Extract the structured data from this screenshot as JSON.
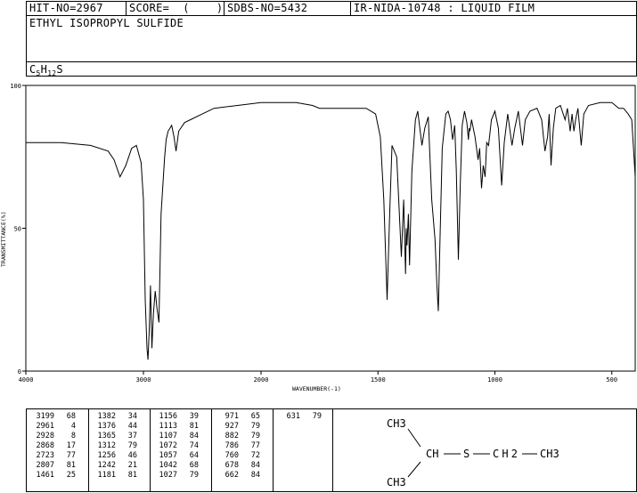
{
  "header": {
    "hit_no": "HIT-NO=2967",
    "score": "SCORE=  (    )",
    "sdbs_no": "SDBS-NO=5432",
    "ir_info": "IR-NIDA-10748 : LIQUID FILM"
  },
  "compound": {
    "name": "ETHYL ISOPROPYL SULFIDE",
    "formula_parts": [
      "C",
      "5",
      "H",
      "12",
      "S"
    ]
  },
  "structure": {
    "ch3_top": "CH3",
    "ch": "CH",
    "s": "S",
    "ch2": "CH2",
    "ch3_right": "CH3",
    "ch3_bottom": "CH3"
  },
  "peak_table": [
    [
      [
        "3199",
        "68"
      ],
      [
        "2961",
        "4"
      ],
      [
        "2928",
        "8"
      ],
      [
        "2868",
        "17"
      ],
      [
        "2723",
        "77"
      ],
      [
        "2807",
        "81"
      ],
      [
        "1461",
        "25"
      ]
    ],
    [
      [
        "1382",
        "34"
      ],
      [
        "1376",
        "44"
      ],
      [
        "1365",
        "37"
      ],
      [
        "1312",
        "79"
      ],
      [
        "1256",
        "46"
      ],
      [
        "1242",
        "21"
      ],
      [
        "1181",
        "81"
      ]
    ],
    [
      [
        "1156",
        "39"
      ],
      [
        "1113",
        "81"
      ],
      [
        "1107",
        "84"
      ],
      [
        "1072",
        "74"
      ],
      [
        "1057",
        "64"
      ],
      [
        "1042",
        "68"
      ],
      [
        "1027",
        "79"
      ]
    ],
    [
      [
        "971",
        "65"
      ],
      [
        "927",
        "79"
      ],
      [
        "882",
        "79"
      ],
      [
        "786",
        "77"
      ],
      [
        "760",
        "72"
      ],
      [
        "678",
        "84"
      ],
      [
        "662",
        "84"
      ]
    ],
    [
      [
        "631",
        "79"
      ]
    ]
  ],
  "chart_data": {
    "type": "line",
    "title": "",
    "xlabel": "WAVENUMBER(-1)",
    "ylabel": "TRANSMITTANCE(%)",
    "xlim": [
      4000,
      400
    ],
    "ylim": [
      0,
      100
    ],
    "x_ticks": [
      4000,
      3000,
      2000,
      1500,
      1000,
      500
    ],
    "y_ticks": [
      0,
      50,
      100
    ],
    "grid": false,
    "series": [
      {
        "x": [
          4000,
          3850,
          3700,
          3450,
          3300,
          3250,
          3199,
          3150,
          3100,
          3060,
          3020,
          3000,
          2985,
          2970,
          2961,
          2950,
          2940,
          2928,
          2915,
          2900,
          2885,
          2868,
          2850,
          2820,
          2807,
          2790,
          2760,
          2740,
          2723,
          2700,
          2650,
          2600,
          2500,
          2400,
          2200,
          2000,
          1850,
          1780,
          1750,
          1700,
          1650,
          1600,
          1550,
          1510,
          1490,
          1475,
          1461,
          1450,
          1440,
          1420,
          1400,
          1390,
          1382,
          1379,
          1376,
          1370,
          1365,
          1355,
          1340,
          1330,
          1312,
          1300,
          1285,
          1270,
          1256,
          1248,
          1242,
          1235,
          1225,
          1210,
          1200,
          1190,
          1181,
          1172,
          1165,
          1156,
          1148,
          1140,
          1130,
          1120,
          1113,
          1110,
          1107,
          1100,
          1085,
          1072,
          1065,
          1057,
          1050,
          1042,
          1035,
          1027,
          1015,
          1000,
          985,
          971,
          960,
          945,
          927,
          915,
          900,
          882,
          870,
          850,
          820,
          800,
          786,
          775,
          768,
          760,
          750,
          740,
          720,
          700,
          690,
          678,
          670,
          662,
          655,
          645,
          631,
          620,
          600,
          550,
          500,
          470,
          450,
          430,
          415,
          400
        ],
        "y": [
          80,
          80,
          80,
          79,
          77,
          74,
          68,
          72,
          78,
          79,
          73,
          60,
          25,
          8,
          4,
          15,
          30,
          8,
          20,
          28,
          22,
          17,
          55,
          75,
          81,
          84,
          86,
          82,
          77,
          84,
          87,
          88,
          90,
          92,
          93,
          94,
          94,
          93,
          92,
          92,
          92,
          92,
          92,
          90,
          82,
          60,
          25,
          55,
          79,
          75,
          40,
          60,
          34,
          50,
          44,
          55,
          37,
          70,
          88,
          91,
          79,
          85,
          89,
          60,
          46,
          30,
          21,
          45,
          78,
          90,
          91,
          88,
          81,
          86,
          70,
          39,
          65,
          86,
          91,
          87,
          81,
          85,
          84,
          88,
          82,
          74,
          78,
          64,
          72,
          68,
          80,
          79,
          88,
          91,
          85,
          65,
          80,
          90,
          79,
          85,
          91,
          79,
          88,
          91,
          92,
          88,
          77,
          82,
          90,
          72,
          85,
          92,
          93,
          88,
          92,
          84,
          90,
          84,
          88,
          92,
          79,
          90,
          93,
          94,
          94,
          92,
          92,
          90,
          88,
          68
        ]
      }
    ]
  }
}
